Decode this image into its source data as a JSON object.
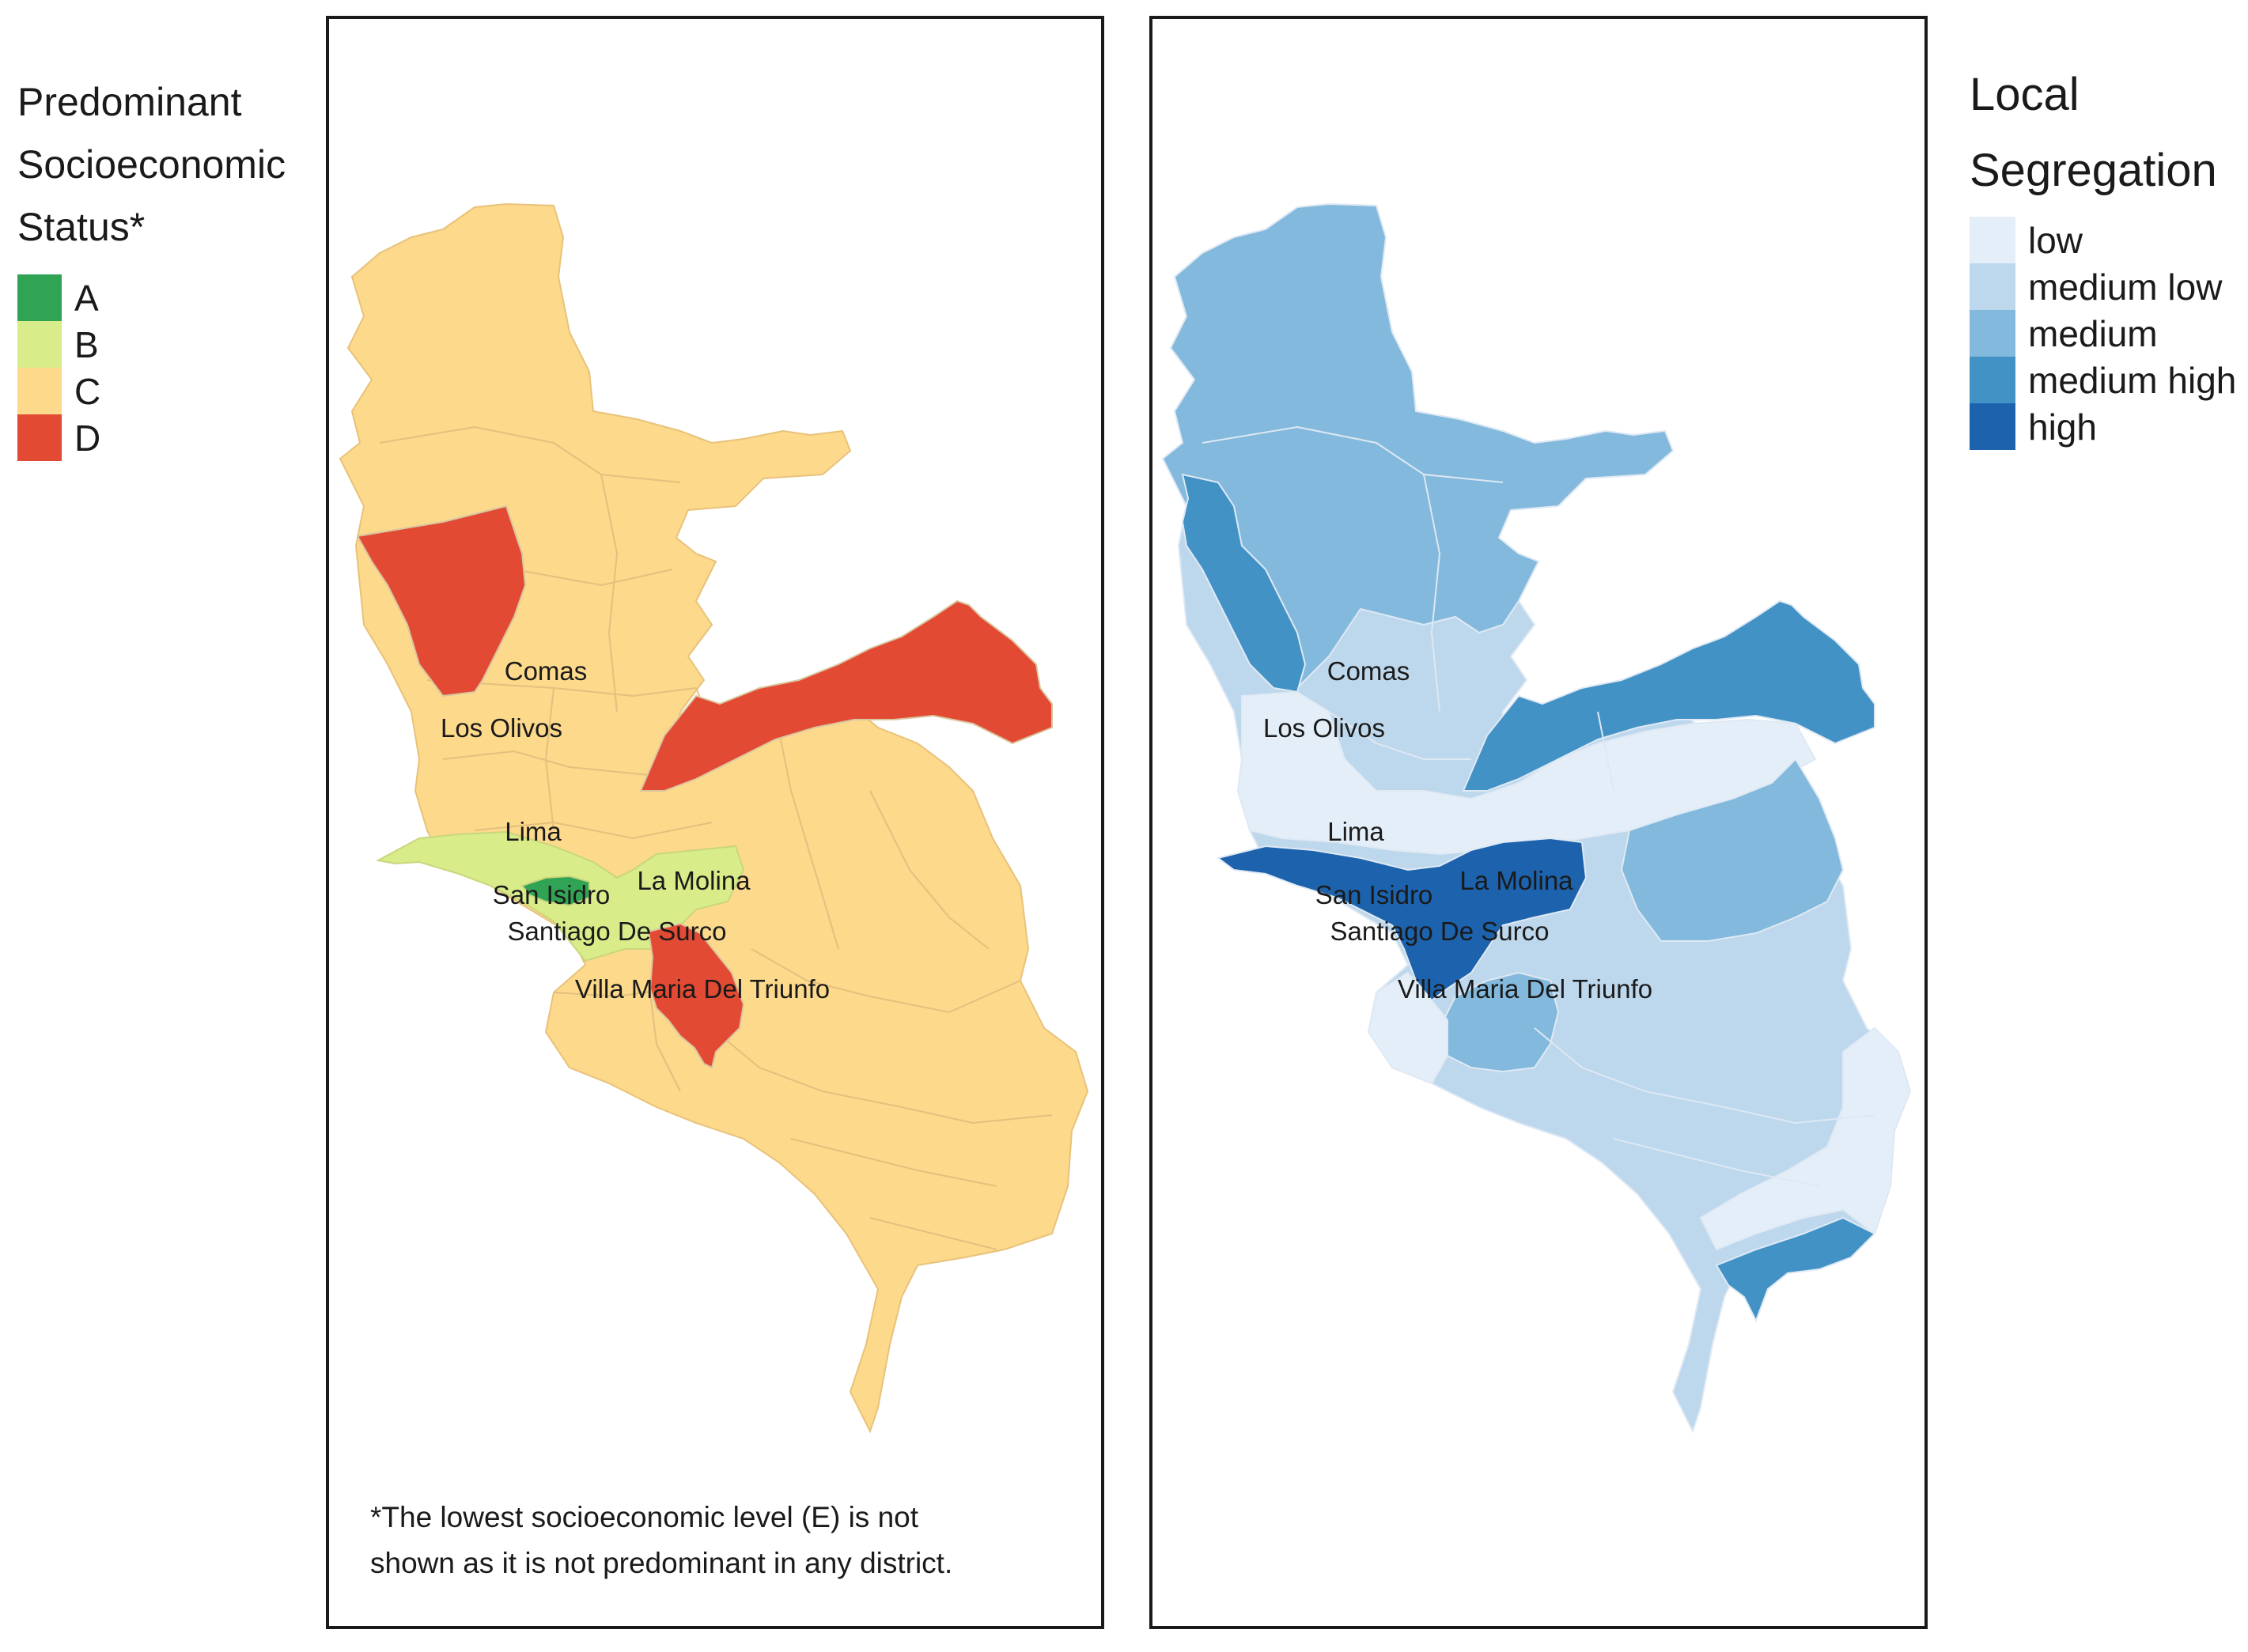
{
  "ses_legend": {
    "title": "Predominant\nSocioeconomic\nStatus*",
    "items": [
      {
        "label": "A",
        "color": "#31a354"
      },
      {
        "label": "B",
        "color": "#d9ec8a"
      },
      {
        "label": "C",
        "color": "#fcd98b"
      },
      {
        "label": "D",
        "color": "#e34a33"
      }
    ]
  },
  "seg_legend": {
    "title": "Local\nSegregation",
    "items": [
      {
        "label": "low",
        "color": "#e4eef8"
      },
      {
        "label": "medium low",
        "color": "#bdd7ec"
      },
      {
        "label": "medium",
        "color": "#82b9dc"
      },
      {
        "label": "medium high",
        "color": "#4292c6"
      },
      {
        "label": "high",
        "color": "#1c62ad"
      }
    ]
  },
  "district_labels": [
    "Comas",
    "Los Olivos",
    "Lima",
    "La Molina",
    "San Isidro",
    "Santiago De Surco",
    "Villa Maria Del Triunfo"
  ],
  "footnote": "*The lowest socioeconomic level (E) is not\n shown as it is not predominant in any district."
}
